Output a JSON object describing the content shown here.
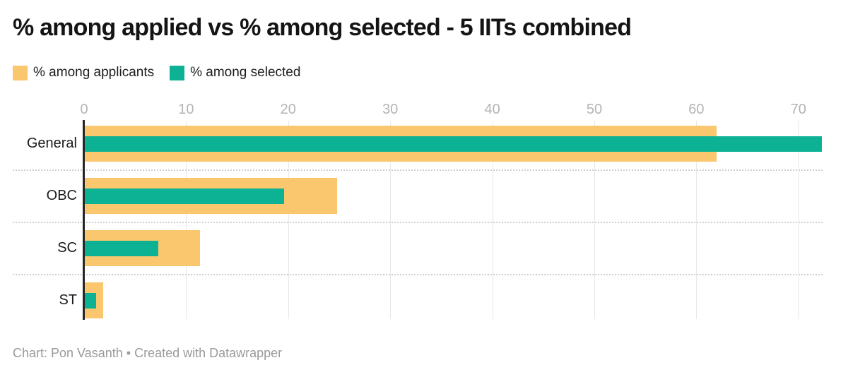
{
  "header": {
    "title": "% among applied vs % among selected - 5 IITs combined"
  },
  "legend": {
    "items": [
      {
        "id": "applicants",
        "label": "% among applicants",
        "color": "#FAC76E"
      },
      {
        "id": "selected",
        "label": "% among selected",
        "color": "#0DB295"
      }
    ]
  },
  "chart_data": {
    "type": "bar",
    "orientation": "horizontal",
    "title": "% among applied vs % among selected - 5 IITs combined",
    "categories": [
      "General",
      "OBC",
      "SC",
      "ST"
    ],
    "series": [
      {
        "name": "% among applicants",
        "color": "#FAC76E",
        "values": [
          61.9,
          24.7,
          11.3,
          1.8
        ]
      },
      {
        "name": "% among selected",
        "color": "#0DB295",
        "values": [
          72.2,
          19.5,
          7.2,
          1.1
        ]
      }
    ],
    "xlabel": "",
    "ylabel": "",
    "xlim": [
      0,
      74.8
    ],
    "xticks": [
      0,
      10,
      20,
      30,
      40,
      50,
      60,
      70
    ],
    "grid": "vertical",
    "legend_position": "top-left"
  },
  "footer": {
    "text": "Chart: Pon Vasanth • Created with Datawrapper"
  },
  "colors": {
    "applicants": "#FAC76E",
    "selected": "#0DB295",
    "axis_line": "#252525",
    "gridline": "#e7e7e7",
    "separator": "#cfcfcf",
    "tick_label": "#b4b4b4",
    "title_text": "#141414",
    "footer_text": "#9a9a9a",
    "background": "#ffffff"
  }
}
